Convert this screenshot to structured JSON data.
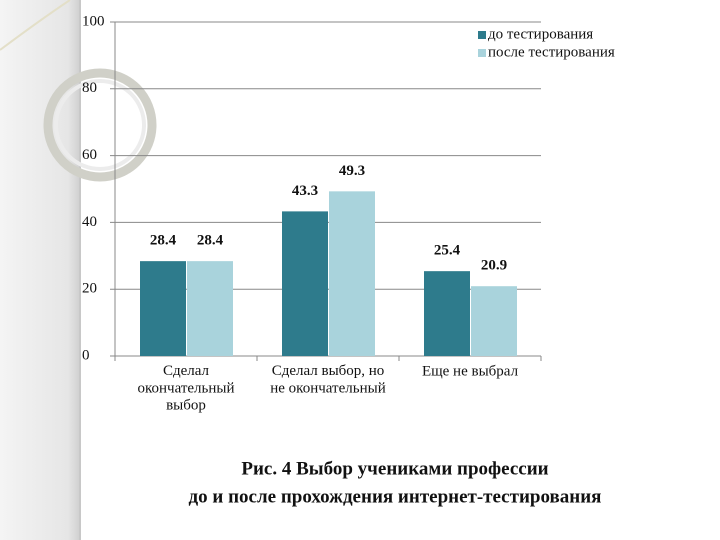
{
  "chart_data": {
    "type": "bar",
    "title": [
      "Рис. 4 Выбор учениками профессии",
      "до и после прохождения интернет-тестирования"
    ],
    "categories": [
      "Сделал\nокончательный\nвыбор",
      "Сделал выбор, но\nне окончательный",
      "Еще не выбрал"
    ],
    "series": [
      {
        "name": "до тестирования",
        "color": "#2e7b8c",
        "values": [
          28.4,
          43.3,
          25.4
        ]
      },
      {
        "name": "после тестирования",
        "color": "#a9d3dc",
        "values": [
          28.4,
          49.3,
          20.9
        ]
      }
    ],
    "ylim": [
      0,
      100
    ],
    "yticks": [
      0,
      20,
      40,
      60,
      80,
      100
    ],
    "grid": true,
    "legend": "top-right"
  }
}
